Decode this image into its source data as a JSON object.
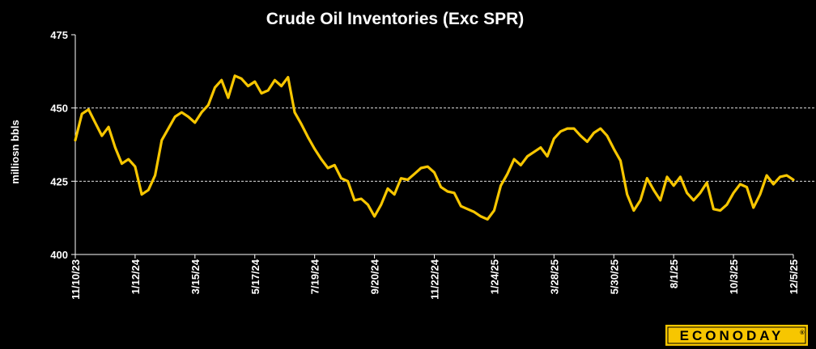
{
  "chart_data": {
    "type": "line",
    "title": "Crude Oil Inventories (Exc SPR)",
    "ylabel": "milliosn bbls",
    "xlabel": "",
    "ylim": [
      400,
      475
    ],
    "yticks": [
      400,
      425,
      450,
      475
    ],
    "gridlines": [
      425,
      450
    ],
    "grid_style": "dashed horizontal",
    "x_tick_labels": [
      "11/10/23",
      "1/12/24",
      "3/15/24",
      "5/17/24",
      "7/19/24",
      "9/20/24",
      "11/22/24",
      "1/24/25",
      "3/28/25",
      "5/30/25",
      "8/1/25",
      "10/3/25",
      "12/5/25"
    ],
    "x_start": "11/10/23",
    "x_end": "12/5/25",
    "line_color": "#f7c600",
    "series": [
      {
        "values": [
          439.0,
          448.0,
          449.5,
          445.0,
          440.5,
          443.5,
          436.5,
          431.0,
          432.5,
          430.0,
          420.5,
          422.0,
          427.0,
          439.0,
          443.0,
          447.0,
          448.5,
          447.0,
          445.0,
          448.5,
          451.0,
          457.0,
          459.5,
          453.5,
          461.0,
          460.0,
          457.5,
          459.0,
          455.0,
          456.0,
          459.5,
          457.5,
          460.5,
          448.5,
          444.5,
          440.0,
          436.0,
          432.5,
          429.5,
          430.5,
          426.0,
          425.0,
          418.5,
          419.0,
          417.0,
          413.0,
          417.0,
          422.5,
          420.5,
          426.0,
          425.5,
          427.5,
          429.5,
          430.0,
          428.0,
          423.0,
          421.5,
          421.0,
          416.5,
          415.5,
          414.5,
          413.0,
          412.0,
          415.0,
          423.5,
          427.5,
          432.5,
          430.5,
          433.5,
          435.0,
          436.5,
          433.5,
          439.5,
          442.0,
          443.0,
          443.0,
          440.5,
          438.5,
          441.5,
          443.0,
          440.5,
          436.0,
          432.0,
          420.5,
          415.0,
          418.5,
          426.0,
          422.0,
          418.5,
          426.5,
          423.5,
          426.5,
          421.0,
          418.5,
          421.0,
          424.5,
          415.5,
          415.0,
          417.0,
          421.0,
          424.0,
          423.0,
          416.0,
          420.5,
          427.0,
          424.0,
          426.5,
          427.0,
          425.5
        ]
      }
    ]
  },
  "logo": {
    "text": "ECONODAY",
    "trademark": "®",
    "background": "#f7c600",
    "text_color": "#000000"
  }
}
